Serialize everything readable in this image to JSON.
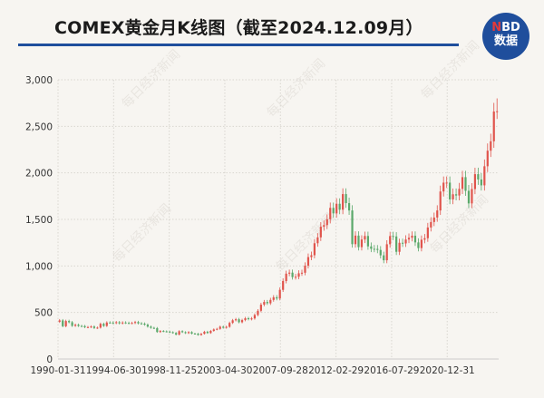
{
  "title": "COMEX黄金月K线图（截至2024.12.09月）",
  "logo": {
    "line1_accent": "N",
    "line1_rest": "BD",
    "line2": "数据"
  },
  "watermark": "每日经济新闻",
  "colors": {
    "up": "#e0544c",
    "down": "#5aa86a",
    "title_rule": "#1f4e9c",
    "background": "#f7f5f1"
  },
  "chart_data": {
    "type": "candlestick",
    "title": "COMEX黄金月K线图（截至2024.12.09月）",
    "xlabel": "",
    "ylabel": "",
    "ylim": [
      0,
      3000
    ],
    "y_ticks": [
      "0",
      "500",
      "1,000",
      "1,500",
      "2,000",
      "2,500",
      "3,000"
    ],
    "y_tick_values": [
      0,
      500,
      1000,
      1500,
      2000,
      2500,
      3000
    ],
    "x_ticks": [
      "1990-01-31",
      "1994-06-30",
      "1998-11-25",
      "2003-04-30",
      "2007-09-28",
      "2012-02-29",
      "2016-07-29",
      "2020-12-31"
    ],
    "x_range": [
      "1990-01-31",
      "2024-12-09"
    ],
    "grid": true,
    "legend": "none",
    "period": "quarterly approximation of monthly candles",
    "start": "1990-01",
    "first_open": 400,
    "closes": [
      415,
      352,
      408,
      395,
      356,
      368,
      355,
      354,
      341,
      343,
      349,
      333,
      337,
      378,
      355,
      392,
      391,
      386,
      395,
      383,
      392,
      388,
      385,
      387,
      397,
      383,
      380,
      369,
      348,
      335,
      332,
      290,
      301,
      297,
      294,
      288,
      280,
      262,
      299,
      288,
      278,
      289,
      273,
      272,
      258,
      271,
      293,
      279,
      302,
      318,
      324,
      347,
      336,
      346,
      388,
      416,
      427,
      395,
      418,
      438,
      428,
      436,
      473,
      518,
      584,
      613,
      599,
      635,
      663,
      650,
      743,
      838,
      917,
      928,
      880,
      884,
      921,
      927,
      1003,
      1095,
      1115,
      1244,
      1307,
      1421,
      1439,
      1502,
      1624,
      1565,
      1668,
      1604,
      1772,
      1675,
      1596,
      1234,
      1326,
      1202,
      1284,
      1322,
      1210,
      1184,
      1183,
      1172,
      1114,
      1061,
      1233,
      1321,
      1317,
      1152,
      1249,
      1242,
      1284,
      1303,
      1325,
      1253,
      1192,
      1282,
      1298,
      1413,
      1472,
      1520,
      1596,
      1800,
      1895,
      1895,
      1715,
      1770,
      1757,
      1828,
      1954,
      1807,
      1672,
      1826,
      1986,
      1929,
      1866,
      2071,
      2238,
      2339,
      2659,
      2662
    ],
    "highs_note_peak": 2800
  }
}
